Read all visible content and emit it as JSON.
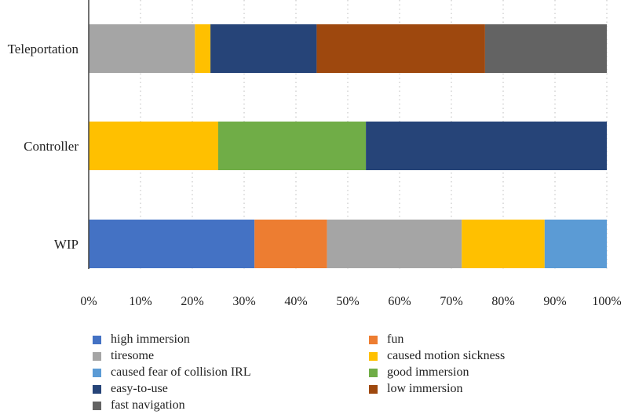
{
  "chart_data": {
    "type": "bar",
    "orientation": "horizontal",
    "stacked": true,
    "title": "",
    "xlabel": "",
    "ylabel": "",
    "xlim": [
      0,
      100
    ],
    "x_ticks": [
      "0%",
      "10%",
      "20%",
      "30%",
      "40%",
      "50%",
      "60%",
      "70%",
      "80%",
      "90%",
      "100%"
    ],
    "grid": "vertical-dotted",
    "legend_position": "bottom",
    "categories": [
      "Teleportation",
      "Controller",
      "WIP"
    ],
    "series": [
      {
        "name": "high immersion",
        "color": "#4472C4",
        "values": [
          0,
          0,
          32
        ]
      },
      {
        "name": "fun",
        "color": "#ED7D31",
        "values": [
          0,
          0,
          14
        ]
      },
      {
        "name": "tiresome",
        "color": "#A5A5A5",
        "values": [
          20.5,
          0,
          26
        ]
      },
      {
        "name": "caused motion sickness",
        "color": "#FFC000",
        "values": [
          3,
          25,
          16
        ]
      },
      {
        "name": "caused fear of collision IRL",
        "color": "#5B9BD5",
        "values": [
          0,
          0,
          12
        ]
      },
      {
        "name": "good immersion",
        "color": "#70AD47",
        "values": [
          0,
          28.5,
          0
        ]
      },
      {
        "name": "easy-to-use",
        "color": "#264478",
        "values": [
          20.5,
          46.5,
          0
        ]
      },
      {
        "name": "low immersion",
        "color": "#9E480E",
        "values": [
          32.5,
          0,
          0
        ]
      },
      {
        "name": "fast navigation",
        "color": "#636363",
        "values": [
          23.5,
          0,
          0
        ]
      }
    ]
  }
}
